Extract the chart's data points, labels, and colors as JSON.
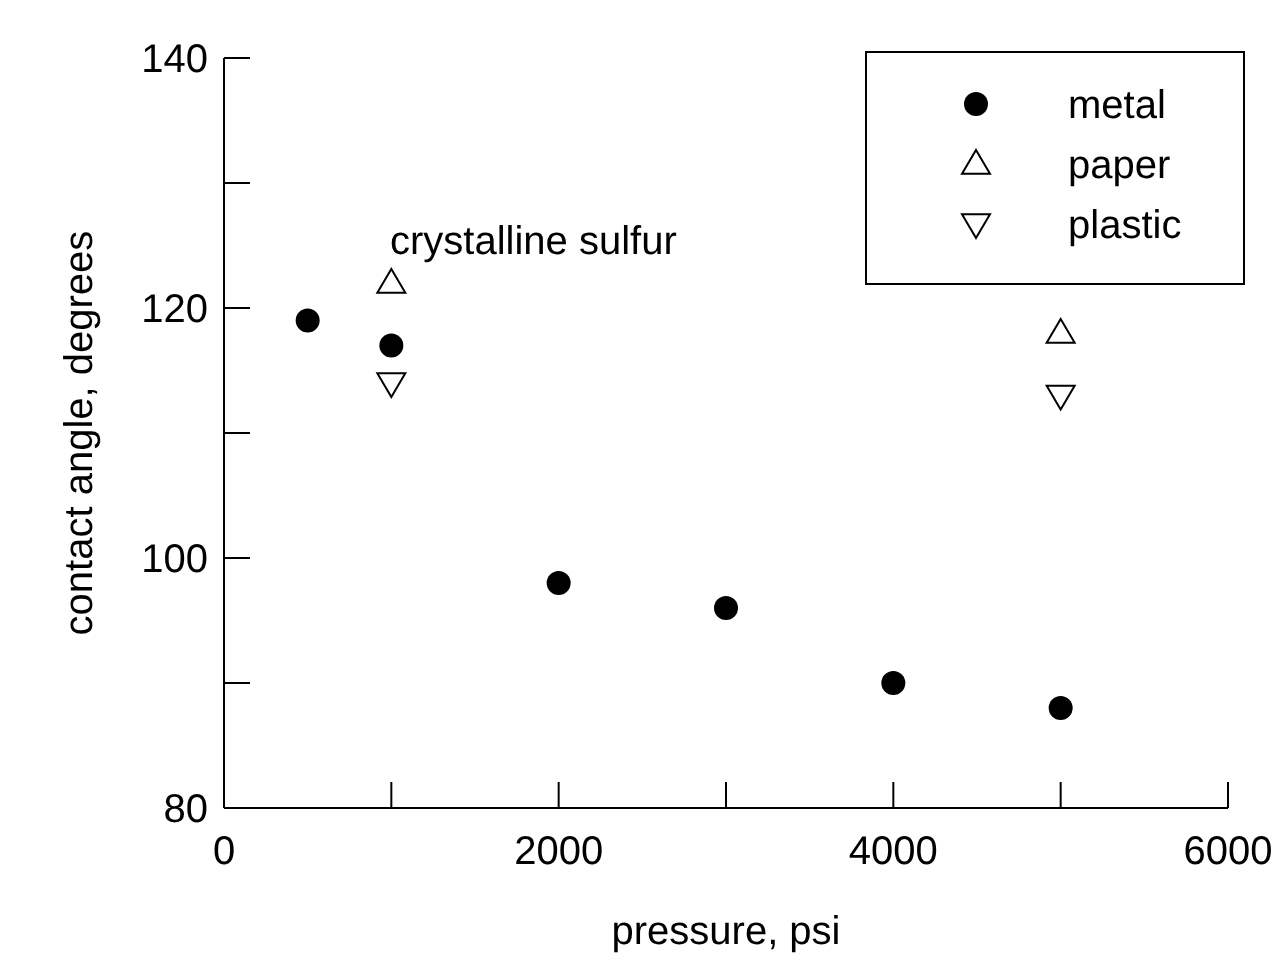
{
  "chart_data": {
    "type": "scatter",
    "xlabel": "pressure, psi",
    "ylabel": "contact angle, degrees",
    "annotations": [
      "crystalline sulfur"
    ],
    "xlim": [
      0,
      6000
    ],
    "ylim": [
      80,
      140
    ],
    "xticks": [
      0,
      {
        "value": 1000,
        "label": null
      },
      2000,
      {
        "value": 3000,
        "label": null
      },
      4000,
      {
        "value": 5000,
        "label": null
      },
      6000
    ],
    "yticks": [
      80,
      {
        "value": 90,
        "label": null
      },
      100,
      {
        "value": 110,
        "label": null
      },
      120,
      {
        "value": 130,
        "label": null
      },
      140
    ],
    "grid": false,
    "legend": "top right",
    "series": [
      {
        "name": "metal",
        "color": "#000000",
        "marker": "circle",
        "x": [
          500,
          1000,
          2000,
          3000,
          4000,
          5000
        ],
        "values": [
          119,
          117,
          98,
          96,
          90,
          88
        ]
      },
      {
        "name": "paper",
        "color": "#000000",
        "marker": "triangle",
        "x": [
          1000,
          5000
        ],
        "values": [
          122,
          118
        ]
      },
      {
        "name": "plastic",
        "color": "#000000",
        "marker": "triangle-down",
        "x": [
          1000,
          5000
        ],
        "values": [
          114,
          113
        ]
      }
    ]
  }
}
